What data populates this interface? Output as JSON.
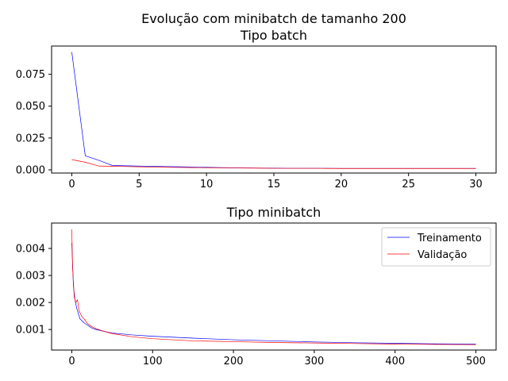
{
  "figure": {
    "suptitle": "Evolução com minibatch de tamanho 200",
    "colors": {
      "train": "#0000ff",
      "val": "#ff0000"
    }
  },
  "chart_data": [
    {
      "type": "line",
      "title": "Tipo batch",
      "xlabel": "",
      "ylabel": "",
      "xlim": [
        -1.5,
        31.5
      ],
      "ylim": [
        -0.0025,
        0.0972
      ],
      "xticks": [
        0,
        5,
        10,
        15,
        20,
        25,
        30
      ],
      "yticks": [
        0.0,
        0.025,
        0.05,
        0.075
      ],
      "ytick_labels": [
        "0.000",
        "0.025",
        "0.050",
        "0.075"
      ],
      "grid": false,
      "series": [
        {
          "key": "train",
          "x": [
            0,
            1,
            2,
            3,
            4,
            5,
            6,
            7,
            8,
            9,
            10,
            11,
            12,
            13,
            14,
            15,
            16,
            17,
            18,
            19,
            20,
            21,
            22,
            23,
            24,
            25,
            26,
            27,
            28,
            29,
            30
          ],
          "values": [
            0.0925,
            0.011,
            0.0075,
            0.0035,
            0.0032,
            0.003,
            0.0028,
            0.0026,
            0.0024,
            0.0022,
            0.002,
            0.0018,
            0.0016,
            0.0015,
            0.0014,
            0.0013,
            0.0012,
            0.0012,
            0.0012,
            0.0012,
            0.0011,
            0.0011,
            0.0011,
            0.0011,
            0.0011,
            0.0011,
            0.0011,
            0.0011,
            0.0011,
            0.0011,
            0.0011
          ]
        },
        {
          "key": "val",
          "x": [
            0,
            1,
            2,
            3,
            4,
            5,
            6,
            7,
            8,
            9,
            10,
            11,
            12,
            13,
            14,
            15,
            16,
            17,
            18,
            19,
            20,
            21,
            22,
            23,
            24,
            25,
            26,
            27,
            28,
            29,
            30
          ],
          "values": [
            0.008,
            0.006,
            0.003,
            0.0028,
            0.0026,
            0.0024,
            0.0022,
            0.002,
            0.0019,
            0.0018,
            0.0017,
            0.0016,
            0.0015,
            0.0014,
            0.0013,
            0.0012,
            0.0012,
            0.0012,
            0.0012,
            0.0011,
            0.0011,
            0.0011,
            0.0011,
            0.0011,
            0.0011,
            0.0011,
            0.0011,
            0.0011,
            0.0011,
            0.0011,
            0.0011
          ]
        }
      ]
    },
    {
      "type": "line",
      "title": "Tipo minibatch",
      "xlabel": "",
      "ylabel": "",
      "xlim": [
        -25,
        525
      ],
      "ylim": [
        0.00024,
        0.00494
      ],
      "xticks": [
        0,
        100,
        200,
        300,
        400,
        500
      ],
      "yticks": [
        0.001,
        0.002,
        0.003,
        0.004
      ],
      "ytick_labels": [
        "0.001",
        "0.002",
        "0.003",
        "0.004"
      ],
      "grid": false,
      "legend": {
        "position": "top-right"
      },
      "series": [
        {
          "key": "train",
          "name": "Treinamento",
          "x": [
            0,
            2,
            4,
            6,
            8,
            10,
            15,
            20,
            25,
            30,
            40,
            50,
            75,
            100,
            150,
            200,
            250,
            300,
            350,
            400,
            450,
            500
          ],
          "values": [
            0.0042,
            0.0026,
            0.0021,
            0.0018,
            0.0016,
            0.0014,
            0.00125,
            0.00115,
            0.00105,
            0.001,
            0.00093,
            0.00087,
            0.0008,
            0.00075,
            0.00068,
            0.00062,
            0.00058,
            0.00054,
            0.00051,
            0.00049,
            0.00047,
            0.00046
          ]
        },
        {
          "key": "val",
          "name": "Validação",
          "x": [
            0,
            1,
            3,
            5,
            7,
            9,
            12,
            15,
            20,
            25,
            30,
            40,
            50,
            75,
            100,
            150,
            200,
            250,
            300,
            350,
            400,
            450,
            500
          ],
          "values": [
            0.0047,
            0.0033,
            0.0022,
            0.002,
            0.0021,
            0.0017,
            0.0015,
            0.0014,
            0.0012,
            0.0011,
            0.00103,
            0.00093,
            0.00085,
            0.00073,
            0.00066,
            0.00058,
            0.00055,
            0.00052,
            0.0005,
            0.00048,
            0.00046,
            0.00045,
            0.00044
          ]
        }
      ]
    }
  ]
}
